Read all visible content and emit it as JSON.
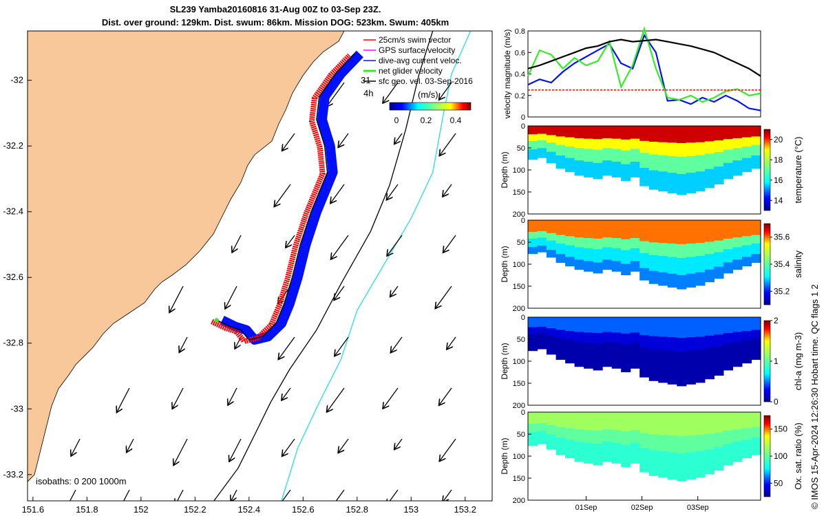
{
  "title_line1": "SL239 Yamba20160816 31-Aug 00Z to 03-Sep 23Z.",
  "title_line2": "Dist. over ground: 129km. Dist. swum: 86km. Mission DOG: 523km. Swum: 405km",
  "footer": "© IMOS 15-Apr-2024 12:26:30 Hobart time. QC flags 1 2",
  "colors": {
    "land": "#F9C89A",
    "track_blue": "#0010FF",
    "track_red": "#FF0000",
    "net_green": "#30F020",
    "gps_magenta": "#FF00FF",
    "isobath_200": "#000000",
    "isobath_1000": "#40E0E0"
  },
  "chart_data": [
    {
      "name": "map",
      "type": "scatter",
      "xlabel": "",
      "ylabel": "",
      "xlim": [
        151.58,
        153.3
      ],
      "ylim": [
        -33.28,
        -31.85
      ],
      "xticks": [
        151.6,
        151.8,
        152,
        152.2,
        152.4,
        152.6,
        152.8,
        153,
        153.2
      ],
      "xtick_labels": [
        "151.6",
        "151.8",
        "152",
        "152.2",
        "152.4",
        "152.6",
        "152.8",
        "153",
        "153.2"
      ],
      "yticks": [
        -32,
        -32.2,
        -32.4,
        -32.6,
        -32.8,
        -33,
        -33.2
      ],
      "ytick_labels": [
        "-32",
        "-32.2",
        "-32.4",
        "-32.6",
        "-32.8",
        "-33",
        "-33.2"
      ],
      "legend": [
        {
          "label": "25cm/s swim vector",
          "color": "#FF0000"
        },
        {
          "label": "GPS surface velocity",
          "color": "#FF00FF"
        },
        {
          "label": "dive-avg current veloc.",
          "color": "#0010FF"
        },
        {
          "label": "net glider velocity",
          "color": "#30F020"
        },
        {
          "label": "sfc geo. vel. 03-Sep-2016",
          "color": "#000000"
        }
      ],
      "vector_scale_labels": [
        "31",
        "4h"
      ],
      "colorbar": {
        "label": "(m/s)",
        "ticks": [
          "0",
          "0.2",
          "0.4"
        ],
        "range": [
          0,
          0.5
        ]
      },
      "isobaths_label": "isobaths: 0   200  1000m",
      "glider_track": [
        [
          152.28,
          -32.73
        ],
        [
          152.33,
          -32.75
        ],
        [
          152.37,
          -32.76
        ],
        [
          152.4,
          -32.79
        ],
        [
          152.45,
          -32.78
        ],
        [
          152.5,
          -32.74
        ],
        [
          152.53,
          -32.68
        ],
        [
          152.56,
          -32.6
        ],
        [
          152.59,
          -32.5
        ],
        [
          152.63,
          -32.4
        ],
        [
          152.66,
          -32.34
        ],
        [
          152.69,
          -32.28
        ],
        [
          152.68,
          -32.2
        ],
        [
          152.65,
          -32.12
        ],
        [
          152.66,
          -32.05
        ],
        [
          152.72,
          -31.98
        ],
        [
          152.79,
          -31.92
        ]
      ],
      "isobath_200m": [
        [
          152.27,
          -33.28
        ],
        [
          152.36,
          -33.18
        ],
        [
          152.42,
          -33.08
        ],
        [
          152.48,
          -32.98
        ],
        [
          152.55,
          -32.88
        ],
        [
          152.65,
          -32.76
        ],
        [
          152.74,
          -32.62
        ],
        [
          152.85,
          -32.46
        ],
        [
          152.92,
          -32.32
        ],
        [
          152.98,
          -32.15
        ],
        [
          153.03,
          -31.98
        ],
        [
          153.08,
          -31.85
        ]
      ],
      "isobath_1000m": [
        [
          152.52,
          -33.28
        ],
        [
          152.58,
          -33.12
        ],
        [
          152.66,
          -32.98
        ],
        [
          152.74,
          -32.85
        ],
        [
          152.8,
          -32.7
        ],
        [
          152.9,
          -32.56
        ],
        [
          153.0,
          -32.42
        ],
        [
          153.08,
          -32.28
        ],
        [
          153.12,
          -32.1
        ],
        [
          153.15,
          -31.98
        ],
        [
          153.22,
          -31.85
        ]
      ]
    },
    {
      "name": "velocity",
      "type": "line",
      "ylabel": "velocity magnitude (m/s)",
      "ylim": [
        0,
        0.8
      ],
      "yticks": [
        "0",
        "0.2",
        "0.4",
        "0.6",
        "0.8"
      ],
      "x": [
        0,
        0.05,
        0.1,
        0.15,
        0.2,
        0.25,
        0.3,
        0.35,
        0.4,
        0.45,
        0.5,
        0.55,
        0.6,
        0.65,
        0.7,
        0.75,
        0.8,
        0.85,
        0.9,
        0.95,
        1
      ],
      "series": [
        {
          "name": "dive-avg current",
          "color": "#0010FF",
          "values": [
            0.3,
            0.35,
            0.32,
            0.42,
            0.5,
            0.56,
            0.62,
            0.68,
            0.5,
            0.45,
            0.76,
            0.6,
            0.15,
            0.16,
            0.12,
            0.18,
            0.14,
            0.2,
            0.15,
            0.08,
            0.06
          ]
        },
        {
          "name": "net glider",
          "color": "#30F020",
          "values": [
            0.38,
            0.62,
            0.58,
            0.45,
            0.55,
            0.48,
            0.52,
            0.7,
            0.28,
            0.48,
            0.82,
            0.45,
            0.18,
            0.16,
            0.2,
            0.14,
            0.18,
            0.24,
            0.26,
            0.2,
            0.22
          ]
        },
        {
          "name": "surface geostrophic",
          "color": "#000000",
          "values": [
            0.45,
            0.48,
            0.52,
            0.56,
            0.6,
            0.64,
            0.66,
            0.7,
            0.72,
            0.7,
            0.71,
            0.72,
            0.7,
            0.68,
            0.66,
            0.63,
            0.6,
            0.55,
            0.5,
            0.45,
            0.38
          ]
        },
        {
          "name": "swim",
          "color": "#FF0000",
          "values": [
            0.25,
            0.25,
            0.25,
            0.25,
            0.25,
            0.25,
            0.25,
            0.25,
            0.25,
            0.25,
            0.25,
            0.25,
            0.25,
            0.25,
            0.25,
            0.25,
            0.25,
            0.25,
            0.25,
            0.25,
            0.25
          ]
        }
      ]
    },
    {
      "name": "temperature",
      "type": "heatmap",
      "ylabel": "Depth (m)",
      "ylim": [
        0,
        200
      ],
      "yticks": [
        "0",
        "50",
        "100",
        "150",
        "200"
      ],
      "colorbar_label": "temperature (°C)",
      "colorbar_ticks": [
        "14",
        "16",
        "18",
        "20"
      ],
      "crange": [
        13,
        21
      ],
      "layers": [
        {
          "v": 20.5,
          "to": 0.25
        },
        {
          "v": 19,
          "to": 0.45
        },
        {
          "v": 17,
          "to": 0.7
        },
        {
          "v": 15.5,
          "to": 1
        }
      ]
    },
    {
      "name": "salinity",
      "type": "heatmap",
      "ylabel": "Depth (m)",
      "ylim": [
        0,
        200
      ],
      "yticks": [
        "0",
        "50",
        "100",
        "150",
        "200"
      ],
      "colorbar_label": "salinity",
      "colorbar_ticks": [
        "35.2",
        "35.4",
        "35.6"
      ],
      "crange": [
        35.1,
        35.7
      ],
      "layers": [
        {
          "v": 35.6,
          "to": 0.35
        },
        {
          "v": 35.4,
          "to": 0.55
        },
        {
          "v": 35.3,
          "to": 0.8
        },
        {
          "v": 35.25,
          "to": 1
        }
      ]
    },
    {
      "name": "chlorophyll",
      "type": "heatmap",
      "ylabel": "Depth (m)",
      "ylim": [
        0,
        200
      ],
      "yticks": [
        "0",
        "50",
        "100",
        "150",
        "200"
      ],
      "colorbar_label": "chl-a (mg m-3)",
      "colorbar_ticks": [
        "0",
        "1",
        "2"
      ],
      "crange": [
        0,
        2
      ],
      "layers": [
        {
          "v": 0.45,
          "to": 0.3
        },
        {
          "v": 0.2,
          "to": 0.5
        },
        {
          "v": 0.08,
          "to": 1
        }
      ]
    },
    {
      "name": "oxygen",
      "type": "heatmap",
      "ylabel": "Depth (m)",
      "ylim": [
        0,
        200
      ],
      "yticks": [
        "0",
        "50",
        "100",
        "150",
        "200"
      ],
      "colorbar_label": "Ox. sat. ratio (%)",
      "colorbar_ticks": [
        "50",
        "100",
        "150"
      ],
      "crange": [
        25,
        175
      ],
      "layers": [
        {
          "v": 115,
          "to": 0.35
        },
        {
          "v": 100,
          "to": 0.6
        },
        {
          "v": 88,
          "to": 1
        }
      ]
    }
  ],
  "time_axis": {
    "ticks": [
      "01Sep",
      "02Sep",
      "03Sep"
    ],
    "tick_fracs": [
      0.25,
      0.49,
      0.73
    ]
  },
  "profile_bottom": [
    0.38,
    0.36,
    0.42,
    0.48,
    0.52,
    0.56,
    0.58,
    0.6,
    0.56,
    0.58,
    0.62,
    0.58,
    0.68,
    0.72,
    0.74,
    0.76,
    0.78,
    0.76,
    0.74,
    0.7,
    0.66,
    0.6,
    0.56,
    0.52,
    0.48
  ]
}
